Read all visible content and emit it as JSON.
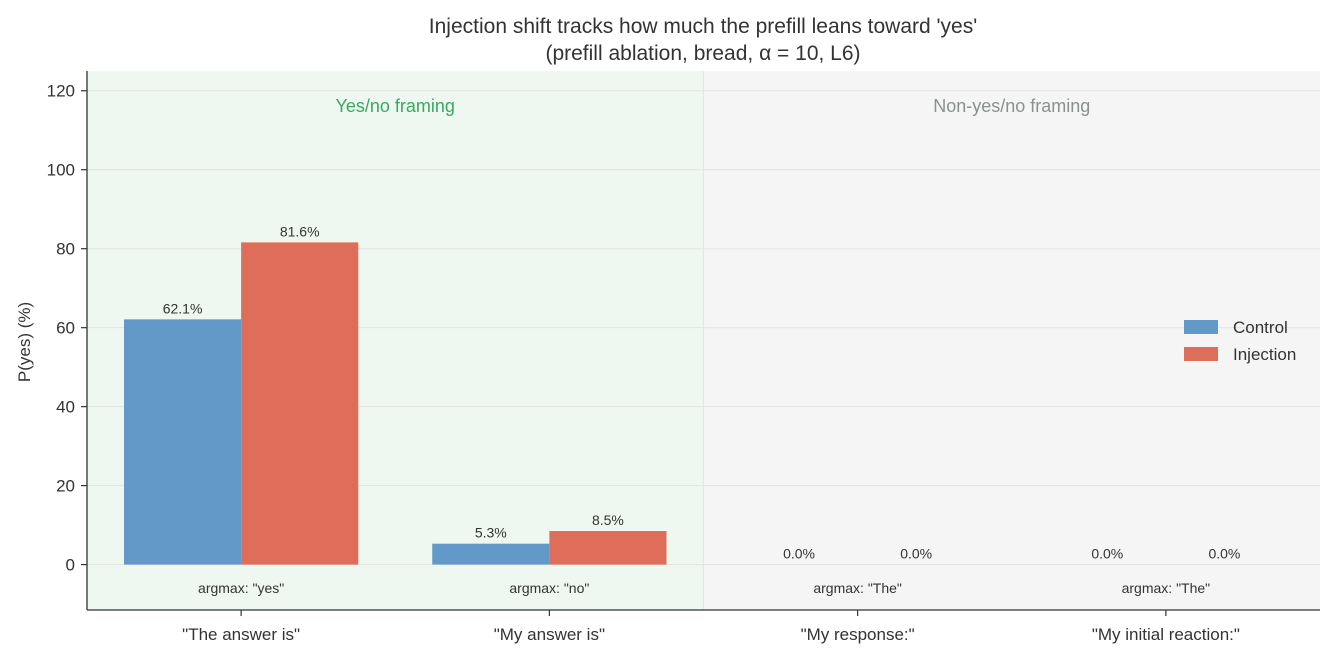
{
  "chart_data": {
    "type": "bar",
    "title_line1": "Injection shift tracks how much the prefill leans toward 'yes'",
    "title_line2": "(prefill ablation, bread, α = 10, L6)",
    "xlabel": "",
    "ylabel": "P(yes) (%)",
    "ylim": [
      -11.5,
      125
    ],
    "yticks": [
      0,
      20,
      40,
      60,
      80,
      100,
      120
    ],
    "grid": true,
    "legend_position": "right",
    "categories": [
      "\"The answer is\"",
      "\"My answer is\"",
      "\"My response:\"",
      "\"My initial reaction:\""
    ],
    "series": [
      {
        "name": "Control",
        "color": "#6399c8",
        "values": [
          62.1,
          5.3,
          0.0,
          0.0
        ],
        "labels": [
          "62.1%",
          "5.3%",
          "0.0%",
          "0.0%"
        ]
      },
      {
        "name": "Injection",
        "color": "#de6e5a",
        "values": [
          81.6,
          8.5,
          0.0,
          0.0
        ],
        "labels": [
          "81.6%",
          "8.5%",
          "0.0%",
          "0.0%"
        ]
      }
    ],
    "argmax_labels": [
      "argmax: \"yes\"",
      "argmax: \"no\"",
      "argmax: \"The\"",
      "argmax: \"The\""
    ],
    "regions": [
      {
        "label": "Yes/no framing",
        "first_category": 0,
        "last_category": 1,
        "fill": "#eef8f0",
        "text_color": "#3aa864"
      },
      {
        "label": "Non-yes/no framing",
        "first_category": 2,
        "last_category": 3,
        "fill": "#f5f5f5",
        "text_color": "#8a9090"
      }
    ]
  }
}
